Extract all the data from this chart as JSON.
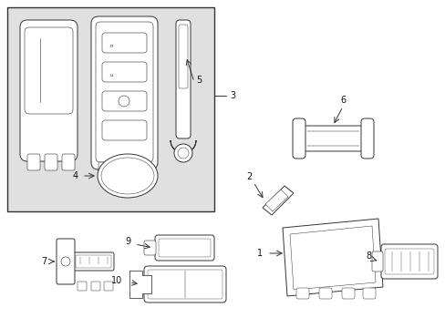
{
  "bg_color": "#ffffff",
  "box_bg": "#e0e0e0",
  "line_color": "#333333",
  "lw": 0.7,
  "fig_w": 4.89,
  "fig_h": 3.6,
  "dpi": 100
}
